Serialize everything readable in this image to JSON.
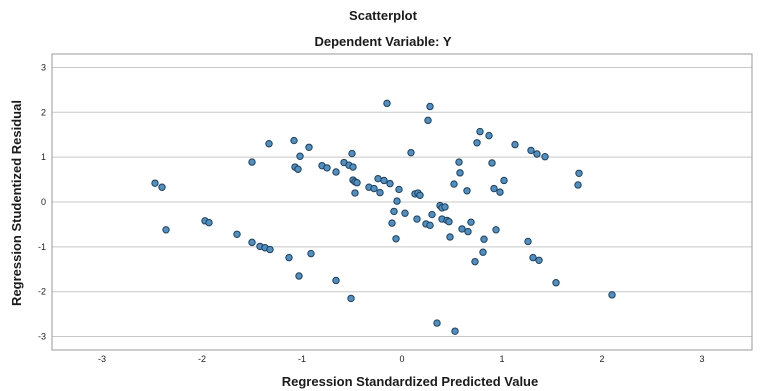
{
  "chart_data": {
    "type": "scatter",
    "title": "Scatterplot",
    "subtitle": "Dependent Variable: Y",
    "xlabel": "Regression Standardized Predicted Value",
    "ylabel": "Regression Studentized Residual",
    "xlim": [
      -3.5,
      3.5
    ],
    "ylim": [
      -3.3,
      3.3
    ],
    "x_ticks": [
      -3,
      -2,
      -1,
      0,
      1,
      2,
      3
    ],
    "y_ticks": [
      -3,
      -2,
      -1,
      0,
      1,
      2,
      3
    ],
    "grid": "horizontal",
    "marker_fill": "#4f8fc2",
    "marker_stroke": "#1f3f5a",
    "points": [
      {
        "x": -2.47,
        "y": 0.42
      },
      {
        "x": -2.4,
        "y": 0.33
      },
      {
        "x": -2.36,
        "y": -0.62
      },
      {
        "x": -1.97,
        "y": -0.42
      },
      {
        "x": -1.93,
        "y": -0.46
      },
      {
        "x": -1.65,
        "y": -0.72
      },
      {
        "x": -1.5,
        "y": -0.9
      },
      {
        "x": -1.42,
        "y": -0.99
      },
      {
        "x": -1.37,
        "y": -1.02
      },
      {
        "x": -1.32,
        "y": -1.06
      },
      {
        "x": -1.5,
        "y": 0.89
      },
      {
        "x": -1.33,
        "y": 1.3
      },
      {
        "x": -1.13,
        "y": -1.24
      },
      {
        "x": -1.08,
        "y": 1.37
      },
      {
        "x": -1.07,
        "y": 0.78
      },
      {
        "x": -1.04,
        "y": 0.73
      },
      {
        "x": -1.02,
        "y": 1.02
      },
      {
        "x": -1.03,
        "y": -1.65
      },
      {
        "x": -0.93,
        "y": 1.22
      },
      {
        "x": -0.91,
        "y": -1.15
      },
      {
        "x": -0.8,
        "y": 0.81
      },
      {
        "x": -0.75,
        "y": 0.76
      },
      {
        "x": -0.66,
        "y": 0.67
      },
      {
        "x": -0.66,
        "y": -1.75
      },
      {
        "x": -0.58,
        "y": 0.88
      },
      {
        "x": -0.53,
        "y": 0.82
      },
      {
        "x": -0.51,
        "y": -2.15
      },
      {
        "x": -0.5,
        "y": 1.08
      },
      {
        "x": -0.49,
        "y": 0.78
      },
      {
        "x": -0.49,
        "y": 0.49
      },
      {
        "x": -0.47,
        "y": 0.45
      },
      {
        "x": -0.47,
        "y": 0.2
      },
      {
        "x": -0.45,
        "y": 0.43
      },
      {
        "x": -0.33,
        "y": 0.33
      },
      {
        "x": -0.28,
        "y": 0.3
      },
      {
        "x": -0.24,
        "y": 0.52
      },
      {
        "x": -0.22,
        "y": 0.21
      },
      {
        "x": -0.18,
        "y": 0.48
      },
      {
        "x": -0.15,
        "y": 2.2
      },
      {
        "x": -0.12,
        "y": 0.41
      },
      {
        "x": -0.1,
        "y": -0.47
      },
      {
        "x": -0.08,
        "y": -0.21
      },
      {
        "x": -0.06,
        "y": -0.82
      },
      {
        "x": -0.05,
        "y": 0.02
      },
      {
        "x": -0.03,
        "y": 0.28
      },
      {
        "x": 0.03,
        "y": -0.25
      },
      {
        "x": 0.09,
        "y": 1.1
      },
      {
        "x": 0.13,
        "y": 0.18
      },
      {
        "x": 0.15,
        "y": -0.38
      },
      {
        "x": 0.16,
        "y": 0.2
      },
      {
        "x": 0.18,
        "y": 0.15
      },
      {
        "x": 0.24,
        "y": -0.49
      },
      {
        "x": 0.26,
        "y": 1.82
      },
      {
        "x": 0.28,
        "y": 2.13
      },
      {
        "x": 0.28,
        "y": -0.52
      },
      {
        "x": 0.3,
        "y": -0.28
      },
      {
        "x": 0.35,
        "y": -2.7
      },
      {
        "x": 0.38,
        "y": -0.08
      },
      {
        "x": 0.4,
        "y": -0.13
      },
      {
        "x": 0.4,
        "y": -0.38
      },
      {
        "x": 0.43,
        "y": -0.11
      },
      {
        "x": 0.45,
        "y": -0.41
      },
      {
        "x": 0.47,
        "y": -0.44
      },
      {
        "x": 0.48,
        "y": -0.78
      },
      {
        "x": 0.52,
        "y": 0.4
      },
      {
        "x": 0.53,
        "y": -2.88
      },
      {
        "x": 0.57,
        "y": 0.89
      },
      {
        "x": 0.58,
        "y": 0.65
      },
      {
        "x": 0.6,
        "y": -0.6
      },
      {
        "x": 0.65,
        "y": 0.25
      },
      {
        "x": 0.66,
        "y": -0.66
      },
      {
        "x": 0.69,
        "y": -0.45
      },
      {
        "x": 0.73,
        "y": -1.33
      },
      {
        "x": 0.75,
        "y": 1.32
      },
      {
        "x": 0.78,
        "y": 1.57
      },
      {
        "x": 0.81,
        "y": -1.12
      },
      {
        "x": 0.82,
        "y": -0.83
      },
      {
        "x": 0.87,
        "y": 1.48
      },
      {
        "x": 0.9,
        "y": 0.87
      },
      {
        "x": 0.92,
        "y": 0.3
      },
      {
        "x": 0.94,
        "y": -0.62
      },
      {
        "x": 0.98,
        "y": 0.22
      },
      {
        "x": 1.02,
        "y": 0.48
      },
      {
        "x": 1.13,
        "y": 1.28
      },
      {
        "x": 1.26,
        "y": -0.88
      },
      {
        "x": 1.29,
        "y": 1.15
      },
      {
        "x": 1.31,
        "y": -1.24
      },
      {
        "x": 1.35,
        "y": 1.07
      },
      {
        "x": 1.37,
        "y": -1.3
      },
      {
        "x": 1.43,
        "y": 1.01
      },
      {
        "x": 1.54,
        "y": -1.8
      },
      {
        "x": 1.76,
        "y": 0.38
      },
      {
        "x": 1.77,
        "y": 0.64
      },
      {
        "x": 2.1,
        "y": -2.07
      }
    ]
  }
}
